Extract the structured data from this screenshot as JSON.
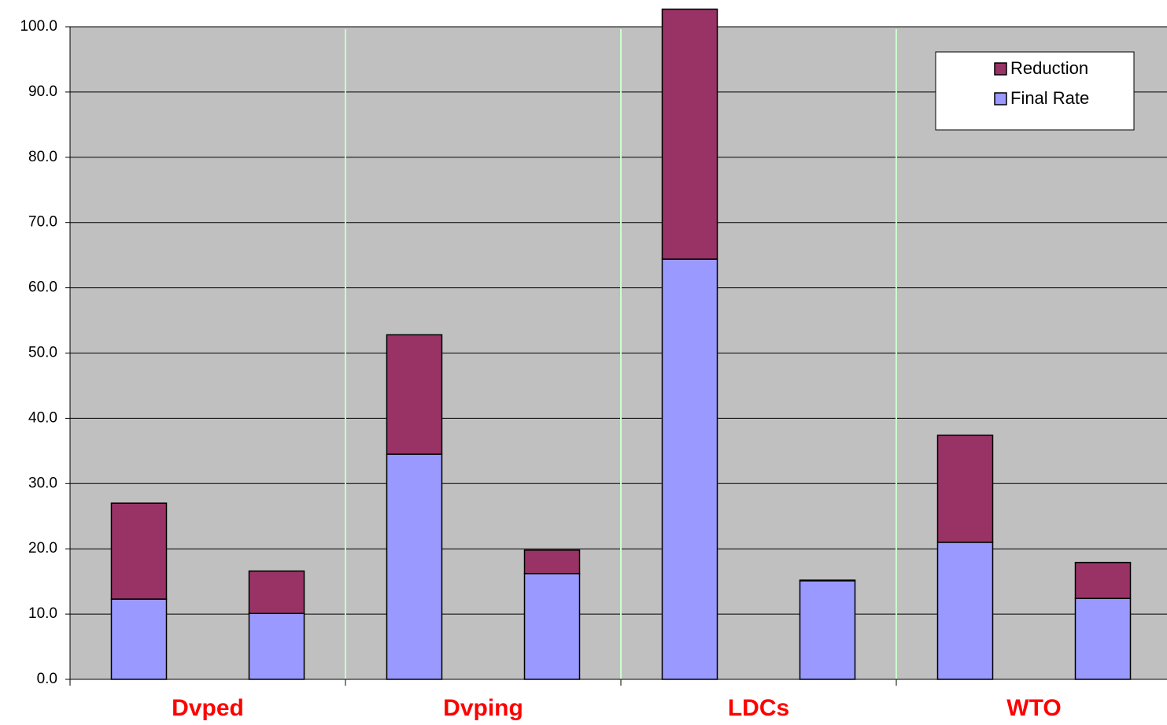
{
  "chart_data": {
    "type": "stacked-bar",
    "groups": [
      "Dvped",
      "Dvping",
      "LDCs",
      "WTO"
    ],
    "group_label_color": "#ff0000",
    "series": [
      {
        "name": "Final Rate",
        "color": "#9999ff",
        "values": [
          12.3,
          10.1,
          34.5,
          16.2,
          64.4,
          15.1,
          21.0,
          12.4
        ]
      },
      {
        "name": "Reduction",
        "color": "#993366",
        "values": [
          14.7,
          6.5,
          18.3,
          3.6,
          38.3,
          0.1,
          16.4,
          5.5
        ]
      }
    ],
    "ylim": [
      0,
      100
    ],
    "yticks": [
      {
        "value": 0,
        "label": "0.0"
      },
      {
        "value": 10,
        "label": "10.0"
      },
      {
        "value": 20,
        "label": "20.0"
      },
      {
        "value": 30,
        "label": "30.0"
      },
      {
        "value": 40,
        "label": "40.0"
      },
      {
        "value": 50,
        "label": "50.0"
      },
      {
        "value": 60,
        "label": "60.0"
      },
      {
        "value": 70,
        "label": "70.0"
      },
      {
        "value": 80,
        "label": "80.0"
      },
      {
        "value": 90,
        "label": "90.0"
      },
      {
        "value": 100,
        "label": "100.0"
      }
    ],
    "grid": true,
    "group_separators": true,
    "legend": "top-right"
  }
}
